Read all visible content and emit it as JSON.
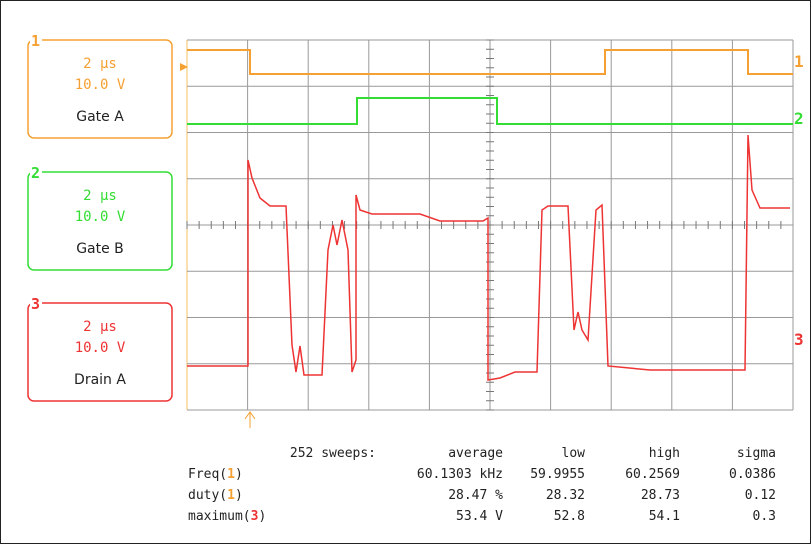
{
  "channels": [
    {
      "number": "1",
      "timebase": "2 µs",
      "scale": "10.0 V",
      "name": "Gate A",
      "color": "#f5a033"
    },
    {
      "number": "2",
      "timebase": "2 µs",
      "scale": "10.0 V",
      "name": "Gate B",
      "color": "#33dd33"
    },
    {
      "number": "3",
      "timebase": "2 µs",
      "scale": "10.0 V",
      "name": "Drain A",
      "color": "#ee3333"
    }
  ],
  "measurements": {
    "header": [
      "252 sweeps:",
      "average",
      "low",
      "high",
      "sigma"
    ],
    "rows": [
      {
        "label": "Freq(",
        "channel": "1",
        "close": ")",
        "cells": [
          "60.1303 kHz",
          "59.9955",
          "60.2569",
          "0.0386"
        ]
      },
      {
        "label": "duty(",
        "channel": "1",
        "close": ")",
        "cells": [
          "28.47 %",
          "28.32",
          "28.73",
          "0.12"
        ]
      },
      {
        "label": "maximum(",
        "channel": "3",
        "close": ")",
        "cells": [
          "53.4 V",
          "52.8",
          "54.1",
          "0.3"
        ]
      }
    ]
  }
}
